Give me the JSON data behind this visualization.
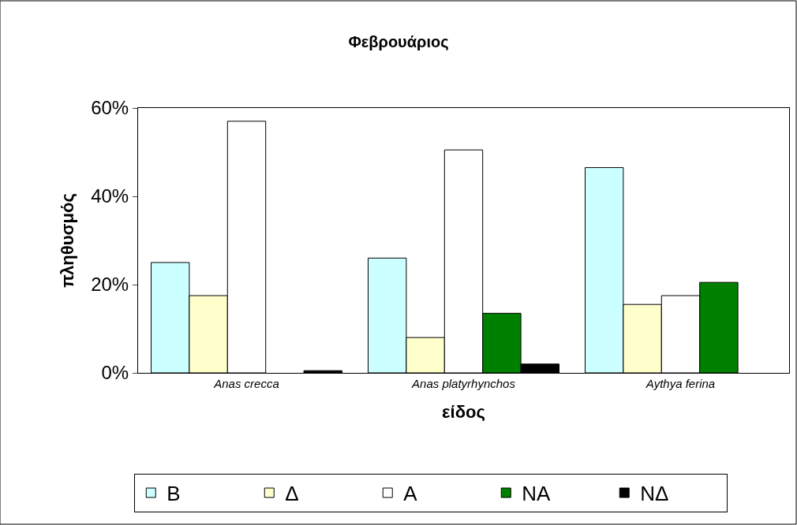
{
  "chart_data": {
    "type": "bar",
    "title": "Φεβρουάριος",
    "xlabel": "είδος",
    "ylabel": "πληθυσμός",
    "categories": [
      "Anas crecca",
      "Anas platyrhynchos",
      "Aythya ferina"
    ],
    "series": [
      {
        "name": "Β",
        "color": "#ccffff",
        "values": [
          25,
          26,
          46.5
        ]
      },
      {
        "name": "Δ",
        "color": "#ffffcc",
        "values": [
          17.5,
          8,
          15.5
        ]
      },
      {
        "name": "Α",
        "color": "#ffffff",
        "values": [
          57,
          50.5,
          17.5
        ]
      },
      {
        "name": "ΝΑ",
        "color": "#008000",
        "values": [
          null,
          13.5,
          20.5
        ]
      },
      {
        "name": "ΝΔ",
        "color": "#000000",
        "values": [
          0.5,
          2,
          null
        ]
      }
    ],
    "ylim": [
      0,
      60
    ],
    "yticks": [
      {
        "value": 0,
        "label": "0%"
      },
      {
        "value": 20,
        "label": "20%"
      },
      {
        "value": 40,
        "label": "40%"
      },
      {
        "value": 60,
        "label": "60%"
      }
    ],
    "legend": "bottom"
  }
}
